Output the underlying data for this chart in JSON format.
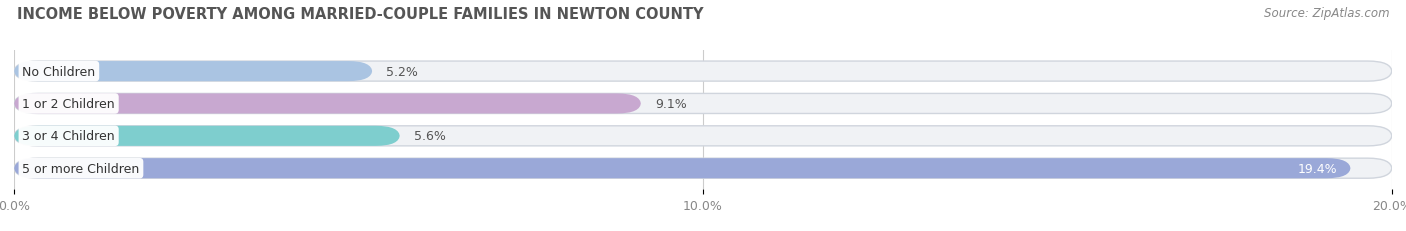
{
  "title": "INCOME BELOW POVERTY AMONG MARRIED-COUPLE FAMILIES IN NEWTON COUNTY",
  "source": "Source: ZipAtlas.com",
  "categories": [
    "No Children",
    "1 or 2 Children",
    "3 or 4 Children",
    "5 or more Children"
  ],
  "values": [
    5.2,
    9.1,
    5.6,
    19.4
  ],
  "bar_colors": [
    "#aac4e2",
    "#c8a8d0",
    "#7ecece",
    "#9aa8d8"
  ],
  "xlim": [
    0,
    20.0
  ],
  "xticks": [
    0.0,
    10.0,
    20.0
  ],
  "xticklabels": [
    "0.0%",
    "10.0%",
    "20.0%"
  ],
  "title_fontsize": 10.5,
  "source_fontsize": 8.5,
  "label_fontsize": 9,
  "value_fontsize": 9,
  "tick_fontsize": 9,
  "background_color": "#ffffff",
  "bar_bg_color": "#f0f2f5",
  "bar_border_color": "#d0d5dd",
  "bar_height": 0.62,
  "bar_spacing": 1.0
}
